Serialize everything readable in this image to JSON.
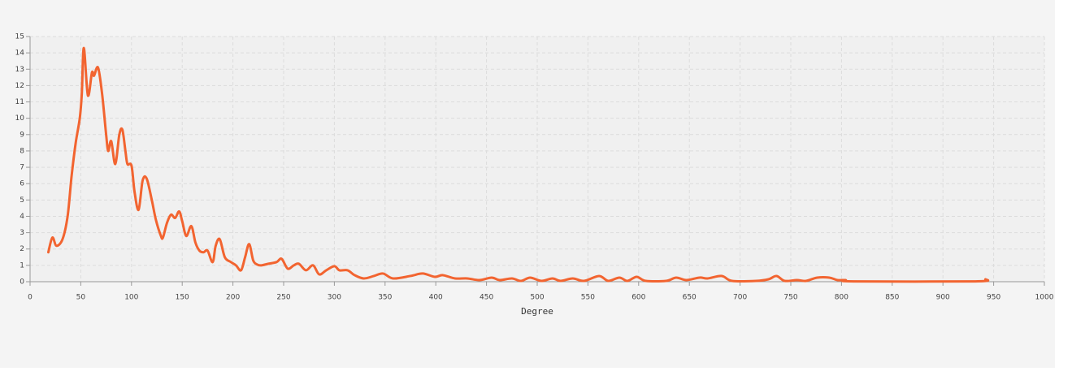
{
  "chart_data": {
    "type": "line",
    "x_label": "Degree",
    "xlim": [
      0,
      1000
    ],
    "xticks": [
      0,
      50,
      100,
      150,
      200,
      250,
      300,
      350,
      400,
      450,
      500,
      550,
      600,
      650,
      700,
      750,
      800,
      850,
      900,
      950,
      1000
    ],
    "ylim": [
      0,
      15
    ],
    "yticks": [
      0,
      1,
      2,
      3,
      4,
      5,
      6,
      7,
      8,
      9,
      10,
      11,
      12,
      13,
      14,
      15
    ],
    "grid": true,
    "series": [
      {
        "color": "#f26430",
        "x": [
          18,
          22,
          26,
          32,
          37,
          41,
          45,
          49,
          51,
          53,
          57,
          61,
          63,
          67,
          71,
          75,
          77,
          80,
          84,
          88,
          91,
          94,
          96,
          100,
          103,
          107,
          111,
          115,
          120,
          124,
          129,
          131,
          135,
          139,
          143,
          147,
          150,
          154,
          159,
          163,
          167,
          171,
          175,
          180,
          183,
          187,
          192,
          198,
          203,
          208,
          212,
          216,
          220,
          224,
          228,
          235,
          243,
          248,
          254,
          260,
          265,
          272,
          279,
          285,
          292,
          300,
          305,
          313,
          320,
          329,
          339,
          348,
          358,
          375,
          387,
          399,
          407,
          419,
          431,
          443,
          455,
          463,
          475,
          484,
          493,
          504,
          515,
          523,
          535,
          546,
          561,
          570,
          581,
          589,
          598,
          607,
          627,
          637,
          647,
          660,
          668,
          682,
          692,
          716,
          728,
          736,
          744,
          756,
          765,
          776,
          788,
          796,
          804,
          812,
          932,
          942
        ],
        "values": [
          1.8,
          2.7,
          2.2,
          2.6,
          4,
          6.5,
          8.5,
          10,
          11.5,
          14.3,
          11.4,
          12.8,
          12.6,
          13.1,
          11.5,
          9,
          8,
          8.6,
          7.2,
          9,
          9.3,
          8,
          7.2,
          7.1,
          5.5,
          4.4,
          6.2,
          6.3,
          5,
          3.8,
          2.8,
          2.7,
          3.6,
          4.1,
          3.9,
          4.3,
          3.7,
          2.8,
          3.4,
          2.4,
          1.9,
          1.8,
          1.9,
          1.2,
          2.2,
          2.6,
          1.5,
          1.2,
          1.0,
          0.7,
          1.5,
          2.3,
          1.3,
          1.05,
          1.0,
          1.1,
          1.2,
          1.4,
          0.8,
          1.0,
          1.1,
          0.7,
          1.0,
          0.45,
          0.7,
          0.95,
          0.7,
          0.7,
          0.4,
          0.2,
          0.35,
          0.5,
          0.2,
          0.35,
          0.5,
          0.3,
          0.4,
          0.2,
          0.2,
          0.1,
          0.25,
          0.1,
          0.2,
          0.05,
          0.25,
          0.05,
          0.2,
          0.05,
          0.2,
          0.05,
          0.35,
          0.05,
          0.25,
          0.05,
          0.3,
          0.05,
          0.05,
          0.25,
          0.1,
          0.25,
          0.2,
          0.35,
          0.05,
          0.05,
          0.15,
          0.35,
          0.05,
          0.1,
          0.05,
          0.25,
          0.25,
          0.1,
          0.1,
          0.02,
          0.02,
          0.15
        ]
      }
    ]
  }
}
